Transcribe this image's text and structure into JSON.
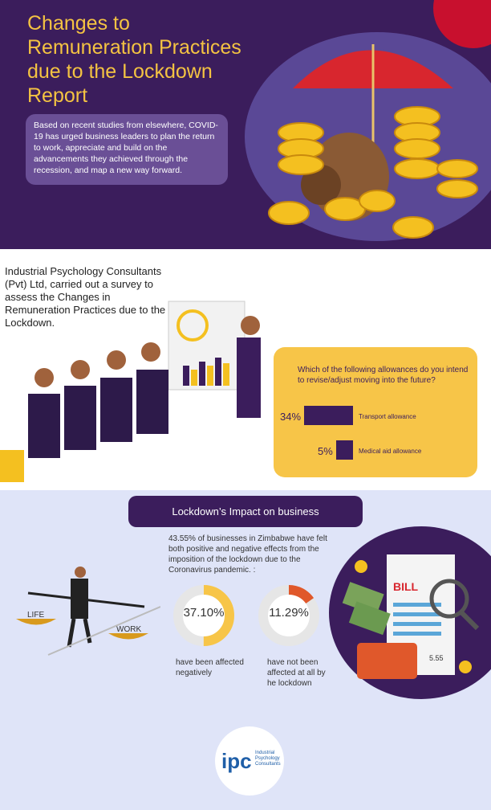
{
  "header": {
    "title": "Changes to Remuneration Practices due to the Lockdown Report",
    "intro": "Based on recent studies from elsewhere, COVID-19 has urged business leaders to plan the return to work, appreciate and build on the advancements they achieved through the recession, and map a new way forward."
  },
  "survey": {
    "text": "Industrial Psychology Consultants (Pvt) Ltd, carried out a survey to assess the Changes in Remuneration Practices due to the Lockdown."
  },
  "allowances": {
    "question": "Which of the following allowances do you intend to revise/adjust moving into the future?",
    "items": [
      {
        "pct": "34%",
        "value": 34,
        "label": "Transport allowance"
      },
      {
        "pct": "5%",
        "value": 5,
        "label": "Medical aid allowance"
      }
    ]
  },
  "impact": {
    "heading": "Lockdown’s Impact on business",
    "text": "43.55% of businesses in Zimbabwe have felt both positive and negative effects from the imposition of the lockdown due to the Coronavirus pandemic. :",
    "stats": [
      {
        "pct": "37.10%",
        "value": 37.1,
        "color": "#f7c548",
        "caption": "have been affected negatively"
      },
      {
        "pct": "11.29%",
        "value": 11.29,
        "color": "#e0582b",
        "caption": "have not been affected at all by he lockdown"
      }
    ]
  },
  "illustrations": {
    "scale_left": "LIFE",
    "scale_right": "WORK",
    "bill": "BILL",
    "bill_amount": "5.55"
  },
  "logo": {
    "mark": "ipc",
    "name": "Industrial Psychology Consultants"
  },
  "colors": {
    "purple": "#3b1d5c",
    "yellow": "#f7c548",
    "orange": "#e0582b"
  }
}
